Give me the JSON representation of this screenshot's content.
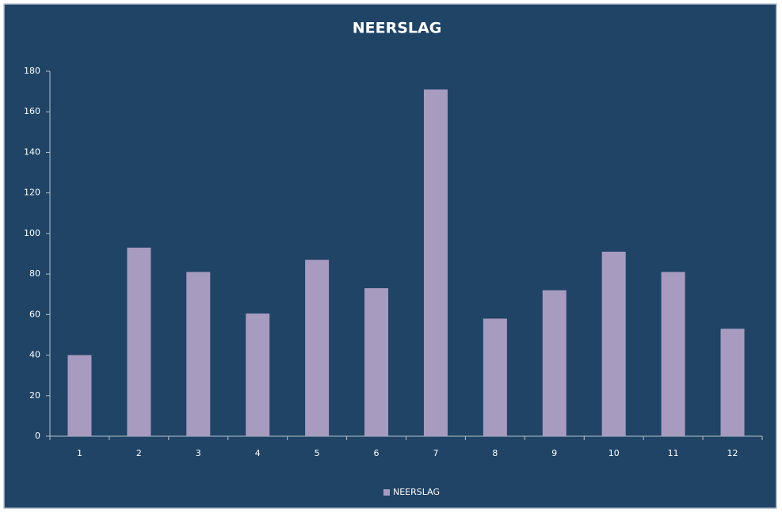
{
  "chart_data": {
    "type": "bar",
    "title": "NEERSLAG",
    "categories": [
      "1",
      "2",
      "3",
      "4",
      "5",
      "6",
      "7",
      "8",
      "9",
      "10",
      "11",
      "12"
    ],
    "series": [
      {
        "name": "NEERSLAG",
        "color": "#a89bc0",
        "values": [
          40,
          93,
          81,
          60.5,
          87,
          73,
          171,
          58,
          72,
          91,
          81,
          53
        ]
      }
    ],
    "ylim": [
      0,
      180
    ],
    "yticks": [
      0,
      20,
      40,
      60,
      80,
      100,
      120,
      140,
      160,
      180
    ],
    "grid": false,
    "legend": "bottom"
  }
}
